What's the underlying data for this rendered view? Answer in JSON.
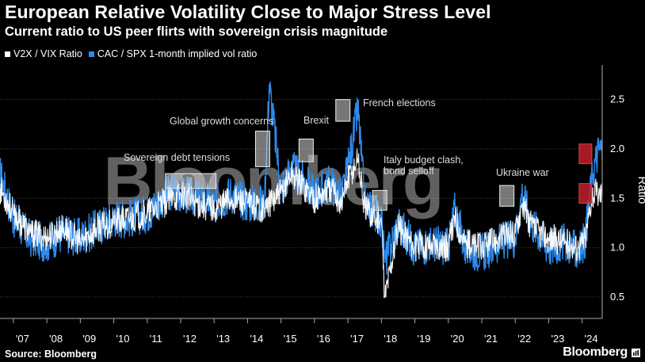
{
  "header": {
    "title": "European Relative Volatility Close to Major Stress Level",
    "subtitle": "Current ratio to US peer flirts with sovereign crisis magnitude"
  },
  "footer": {
    "source": "Source: Bloomberg",
    "brand": "Bloomberg",
    "brand_icon": "chart-grid-icon"
  },
  "watermark": "Bloomberg",
  "colors": {
    "background": "#000000",
    "v2x_series": "#ffffff",
    "cac_series": "#2f8ae9",
    "highlight_box": "#d9d9d9",
    "current_box": "#c0202a",
    "grid": "#444444"
  },
  "chart_data": {
    "type": "line",
    "ylabel": "Ratio",
    "xlabel": "",
    "ylim": [
      0.3,
      2.85
    ],
    "yticks": [
      0.5,
      1.0,
      1.5,
      2.0,
      2.5
    ],
    "ytick_labels": [
      "0.5",
      "1.0",
      "1.5",
      "2.0",
      "2.5"
    ],
    "xlim": [
      2006.6,
      2024.6
    ],
    "x_ticks": [
      2007,
      2008,
      2009,
      2010,
      2011,
      2012,
      2013,
      2014,
      2015,
      2016,
      2017,
      2018,
      2019,
      2020,
      2021,
      2022,
      2023,
      2024
    ],
    "x_tick_labels": [
      "'07",
      "'08",
      "'09",
      "'10",
      "'11",
      "'12",
      "'13",
      "'14",
      "'15",
      "'16",
      "'17",
      "'18",
      "'19",
      "'20",
      "'21",
      "'22",
      "'23",
      "'24"
    ],
    "grid": true,
    "legend_position": "top-left",
    "series": [
      {
        "name": "V2X / VIX Ratio",
        "color": "#ffffff",
        "x": [
          2006.6,
          2007.0,
          2007.5,
          2008.0,
          2008.5,
          2009.0,
          2009.5,
          2010.0,
          2010.5,
          2011.0,
          2011.5,
          2011.8,
          2012.0,
          2012.5,
          2013.0,
          2013.5,
          2014.0,
          2014.5,
          2015.0,
          2015.3,
          2015.6,
          2016.0,
          2016.5,
          2016.8,
          2017.0,
          2017.3,
          2017.5,
          2018.0,
          2018.1,
          2018.5,
          2018.8,
          2019.0,
          2019.5,
          2020.0,
          2020.2,
          2020.5,
          2021.0,
          2021.5,
          2022.0,
          2022.2,
          2022.5,
          2023.0,
          2023.5,
          2023.9,
          2024.1,
          2024.3,
          2024.5
        ],
        "y": [
          1.6,
          1.35,
          1.15,
          1.1,
          1.2,
          1.05,
          1.2,
          1.25,
          1.3,
          1.35,
          1.45,
          1.5,
          1.55,
          1.45,
          1.4,
          1.5,
          1.45,
          1.4,
          1.55,
          1.75,
          1.65,
          1.5,
          1.6,
          1.45,
          1.7,
          1.9,
          1.4,
          1.25,
          0.5,
          1.2,
          1.1,
          1.0,
          1.05,
          1.0,
          1.3,
          1.05,
          1.0,
          1.1,
          1.15,
          1.45,
          1.2,
          1.1,
          1.05,
          1.0,
          1.1,
          1.55,
          1.55
        ]
      },
      {
        "name": "CAC / SPX 1-month implied vol ratio",
        "color": "#2f8ae9",
        "x": [
          2006.6,
          2007.0,
          2007.5,
          2008.0,
          2008.5,
          2009.0,
          2009.5,
          2010.0,
          2010.5,
          2011.0,
          2011.5,
          2011.8,
          2012.0,
          2012.5,
          2013.0,
          2013.5,
          2014.0,
          2014.5,
          2014.65,
          2015.0,
          2015.3,
          2015.6,
          2016.0,
          2016.5,
          2016.8,
          2017.0,
          2017.3,
          2017.5,
          2018.0,
          2018.1,
          2018.5,
          2018.8,
          2019.0,
          2019.5,
          2020.0,
          2020.2,
          2020.5,
          2021.0,
          2021.5,
          2022.0,
          2022.2,
          2022.5,
          2023.0,
          2023.5,
          2023.9,
          2024.1,
          2024.3,
          2024.5
        ],
        "y": [
          1.75,
          1.3,
          1.1,
          1.05,
          1.15,
          1.1,
          1.2,
          1.3,
          1.3,
          1.35,
          1.5,
          1.6,
          1.55,
          1.5,
          1.45,
          1.55,
          1.45,
          1.45,
          2.65,
          1.6,
          1.8,
          1.7,
          1.55,
          1.65,
          1.5,
          1.8,
          2.4,
          1.45,
          1.3,
          0.85,
          1.25,
          1.1,
          1.0,
          1.05,
          1.0,
          1.4,
          1.0,
          0.95,
          1.05,
          1.1,
          1.55,
          1.25,
          1.0,
          1.05,
          0.95,
          1.1,
          1.75,
          2.0
        ]
      }
    ],
    "annotations": [
      {
        "text": "Sovereign debt tensions",
        "x": 2012.3,
        "y_low": 1.6,
        "y_high": 1.75
      },
      {
        "text": "Global growth concerns",
        "x": 2014.45,
        "y_low": 1.82,
        "y_high": 2.18
      },
      {
        "text": "Brexit",
        "x": 2015.75,
        "y_low": 1.87,
        "y_high": 2.1
      },
      {
        "text": "French elections",
        "x": 2016.85,
        "y_low": 2.28,
        "y_high": 2.5
      },
      {
        "text": "Italy budget clash, bond selloff",
        "x": 2017.95,
        "y_low": 1.38,
        "y_high": 1.58
      },
      {
        "text": "Ukraine war",
        "x": 2021.75,
        "y_low": 1.42,
        "y_high": 1.63
      },
      {
        "text": "",
        "x": 2024.1,
        "y_low": 1.45,
        "y_high": 1.65
      },
      {
        "text": "",
        "x": 2024.1,
        "y_low": 1.85,
        "y_high": 2.05
      }
    ]
  }
}
